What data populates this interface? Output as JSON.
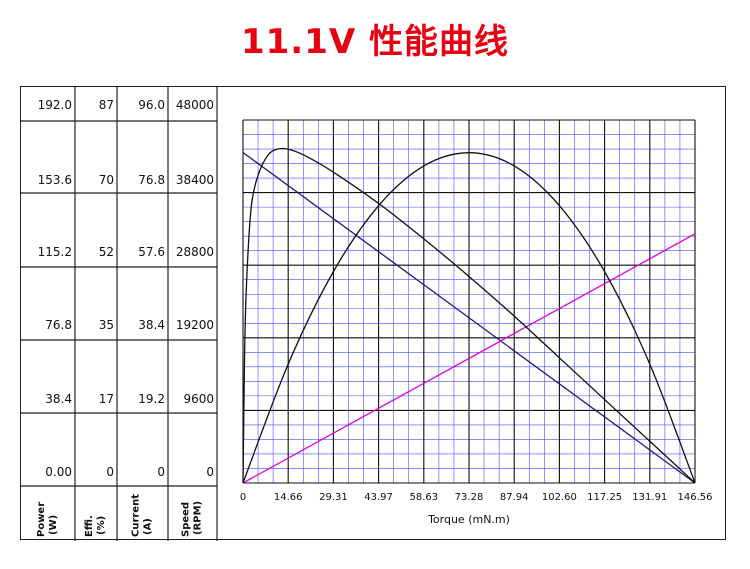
{
  "title": "11.1V 性能曲线",
  "columns": [
    {
      "label_line1": "Power",
      "label_line2": "(W)",
      "ticks": [
        "192.0",
        "153.6",
        "115.2",
        "76.8",
        "38.4",
        "0.00"
      ]
    },
    {
      "label_line1": "Effi.",
      "label_line2": "(%)",
      "ticks": [
        "87",
        "70",
        "52",
        "35",
        "17",
        "0"
      ]
    },
    {
      "label_line1": "Current",
      "label_line2": "(A)",
      "ticks": [
        "96.0",
        "76.8",
        "57.6",
        "38.4",
        "19.2",
        "0"
      ]
    },
    {
      "label_line1": "Speed",
      "label_line2": "(RPM)",
      "ticks": [
        "48000",
        "38400",
        "28800",
        "19200",
        "9600",
        "0"
      ]
    }
  ],
  "chart_data": {
    "type": "line",
    "xlabel": "Torque (mN.m)",
    "x_ticks": [
      "0",
      "14.66",
      "29.31",
      "43.97",
      "58.63",
      "73.28",
      "87.94",
      "102.60",
      "117.25",
      "131.91",
      "146.56"
    ],
    "xlim": [
      0,
      146.56
    ],
    "grid": true,
    "grid_color": "#4a4aff",
    "series": [
      {
        "axis": "Speed (RPM)",
        "color": "#1a1a80",
        "ylim": [
          0,
          48000
        ],
        "x": [
          0,
          146.56
        ],
        "y": [
          43700,
          0
        ]
      },
      {
        "axis": "Current (A)",
        "color": "#e000e0",
        "ylim": [
          0,
          96.0
        ],
        "x": [
          0,
          146.56
        ],
        "y": [
          0,
          65.9
        ]
      },
      {
        "axis": "Power (W)",
        "color": "#111111",
        "ylim": [
          0,
          192.0
        ],
        "x": [
          0,
          14.66,
          29.31,
          43.97,
          58.63,
          73.28,
          87.94,
          102.6,
          117.25,
          131.91,
          146.56
        ],
        "y": [
          0,
          62.9,
          111.8,
          146.7,
          167.7,
          174.7,
          167.7,
          146.7,
          111.8,
          62.9,
          0
        ]
      },
      {
        "axis": "Effi. (%)",
        "color": "#111111",
        "ylim": [
          0,
          87
        ],
        "x": [
          0,
          0.5,
          1,
          2,
          3,
          5,
          8,
          11,
          14.66,
          20,
          29.31,
          43.97,
          58.63,
          73.28,
          87.94,
          102.6,
          117.25,
          131.91,
          140,
          146.56
        ],
        "y": [
          0,
          30,
          45,
          60,
          68,
          74,
          78.5,
          80,
          80,
          78.5,
          74.5,
          67,
          58.5,
          49.5,
          40,
          30,
          20,
          10,
          4.5,
          0
        ]
      }
    ]
  }
}
